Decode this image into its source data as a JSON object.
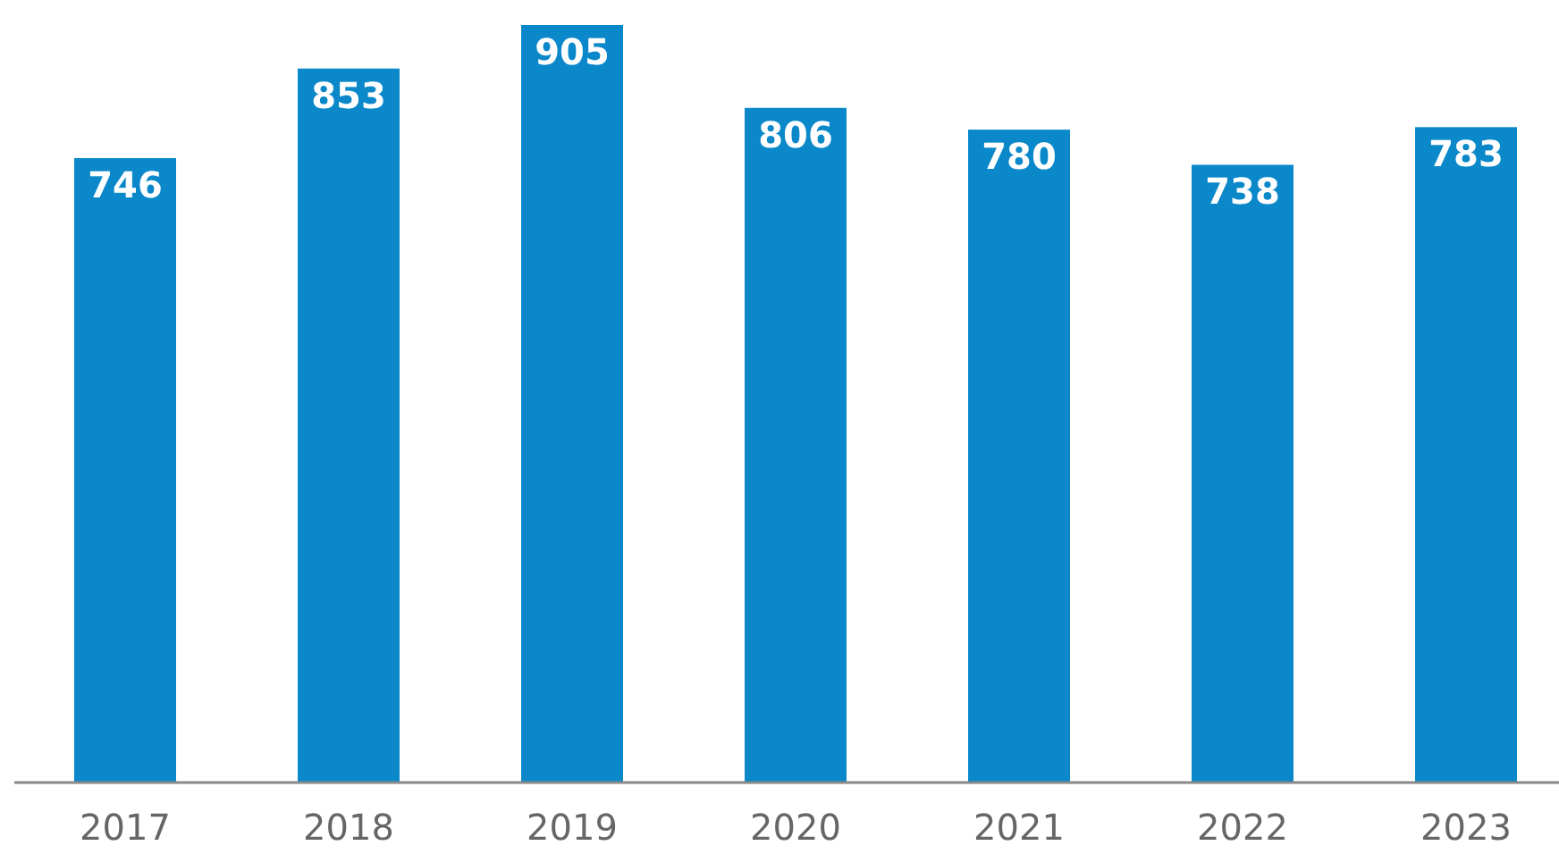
{
  "chart_data": {
    "type": "bar",
    "categories": [
      "2017",
      "2018",
      "2019",
      "2020",
      "2021",
      "2022",
      "2023"
    ],
    "values": [
      746,
      853,
      905,
      806,
      780,
      738,
      783
    ],
    "color": "#0a88c9",
    "data_labels": true
  }
}
